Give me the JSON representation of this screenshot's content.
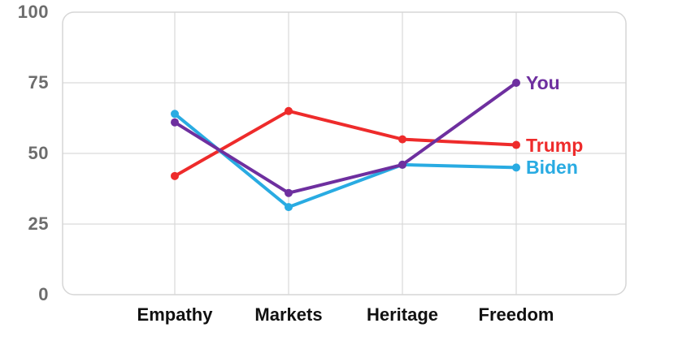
{
  "chart_data": {
    "type": "line",
    "title": "",
    "categories": [
      "Empathy",
      "Markets",
      "Heritage",
      "Freedom"
    ],
    "series": [
      {
        "name": "Trump",
        "color": "#ee2b2b",
        "values": [
          42,
          65,
          55,
          53
        ]
      },
      {
        "name": "Biden",
        "color": "#29abe2",
        "values": [
          64,
          31,
          46,
          45
        ]
      },
      {
        "name": "You",
        "color": "#6e2f9f",
        "values": [
          61,
          36,
          46,
          75
        ]
      }
    ],
    "yticks": [
      "0",
      "25",
      "50",
      "75",
      "100"
    ],
    "ylim": [
      0,
      100
    ],
    "grid": true,
    "legend": {
      "position": "line-end-labels"
    },
    "colors": {
      "axis_tick_text": "#6d6d6d",
      "category_text": "#111111",
      "gridline": "#d9d9d9",
      "plot_border": "#d6d6d6",
      "background": "#ffffff"
    }
  }
}
